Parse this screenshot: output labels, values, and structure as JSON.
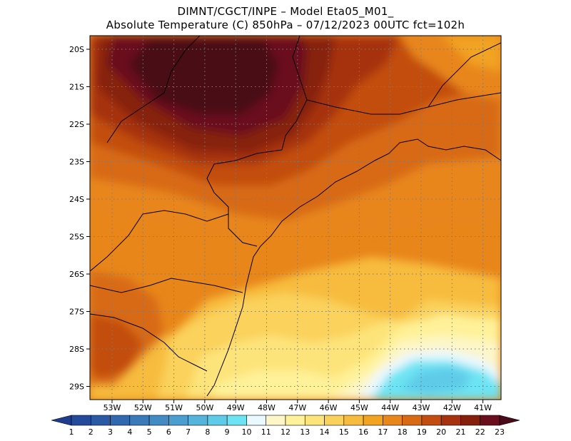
{
  "title": {
    "line1": "DIMNT/CGCT/INPE –  Model Eta05_M01_",
    "line2": "Absolute Temperature (C) 850hPa –  07/12/2023 00UTC fct=102h"
  },
  "map": {
    "lat_labels": [
      "20S",
      "21S",
      "22S",
      "23S",
      "24S",
      "25S",
      "26S",
      "27S",
      "28S",
      "29S"
    ],
    "lon_labels": [
      "53W",
      "52W",
      "51W",
      "50W",
      "49W",
      "48W",
      "47W",
      "46W",
      "45W",
      "44W",
      "43W",
      "42W",
      "41W"
    ],
    "grid": true,
    "frame_color": "#000000"
  },
  "colorbar": {
    "labels": [
      "1",
      "2",
      "3",
      "4",
      "5",
      "6",
      "7",
      "8",
      "9",
      "10",
      "11",
      "12",
      "13",
      "14",
      "15",
      "16",
      "17",
      "18",
      "19",
      "20",
      "21",
      "22",
      "23"
    ],
    "colors": [
      "#1f3d8f",
      "#234a9b",
      "#2a5aa6",
      "#3169b0",
      "#3a7abb",
      "#428bc5",
      "#4a9ed0",
      "#54b4dc",
      "#5ecbe8",
      "#6de4f3",
      "#eaf8ff",
      "#fdf6c8",
      "#fff29a",
      "#fde47a",
      "#fad25b",
      "#f7bc3d",
      "#f2a320",
      "#e8861a",
      "#d86a14",
      "#c34d10",
      "#a6330d",
      "#86200d",
      "#6a0e1e",
      "#4a0a17"
    ]
  }
}
